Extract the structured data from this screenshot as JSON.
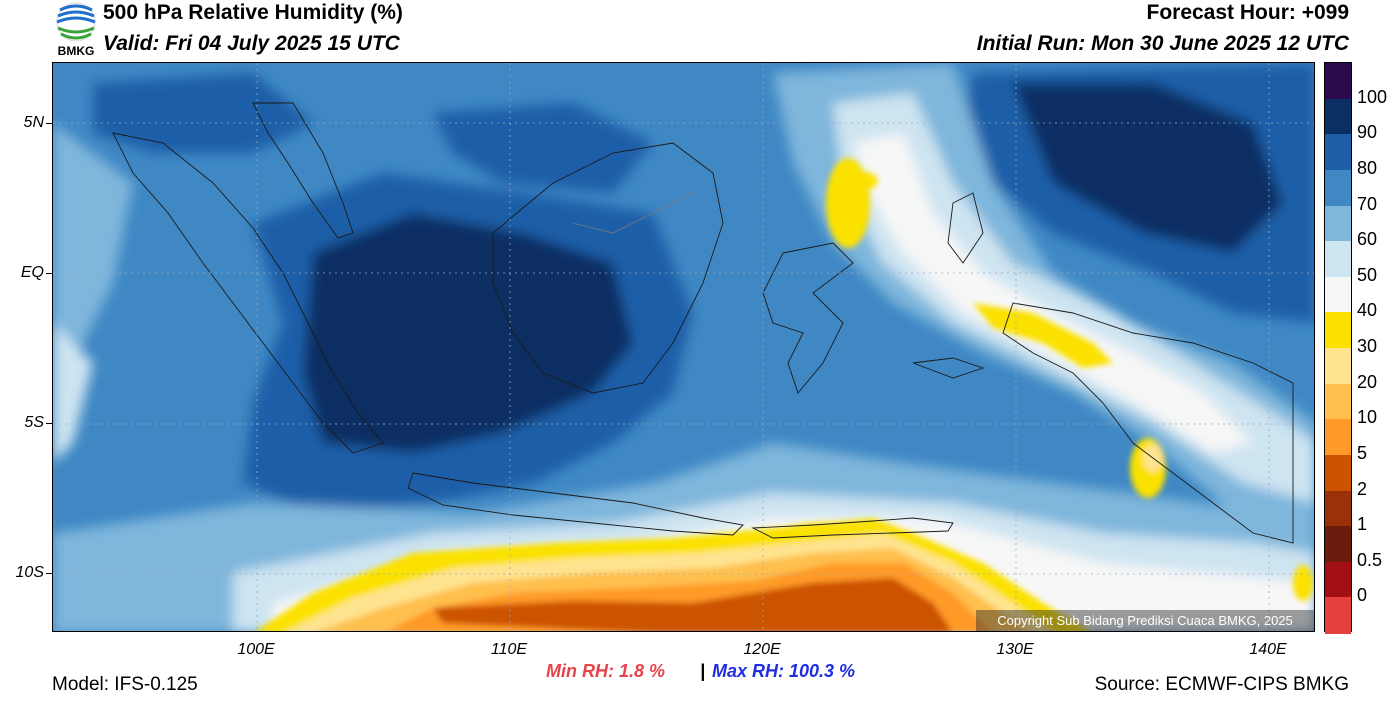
{
  "header": {
    "title": "500 hPa Relative Humidity (%)",
    "valid": "Valid: Fri 04 July 2025 15 UTC",
    "forecast_hour": "Forecast Hour: +099",
    "initial_run": "Initial Run: Mon 30 June 2025 12 UTC"
  },
  "logo": {
    "text": "BMKG",
    "icon": "bmkg-logo-icon"
  },
  "map": {
    "y_ticks": [
      "5N",
      "EQ",
      "5S",
      "10S"
    ],
    "x_ticks": [
      "100E",
      "110E",
      "120E",
      "130E",
      "140E"
    ],
    "copyright": "Copyright Sub Bidang Prediksi Cuaca BMKG, 2025"
  },
  "colorbar": {
    "labels": [
      "100",
      "90",
      "80",
      "70",
      "60",
      "50",
      "40",
      "30",
      "20",
      "10",
      "5",
      "2",
      "1",
      "0.5",
      "0"
    ],
    "colors": [
      "#2d0a4e",
      "#0b2f63",
      "#1f5ea8",
      "#3f88c4",
      "#7eb6dc",
      "#cde4f1",
      "#f7f7f7",
      "#fbe100",
      "#ffe38f",
      "#ffc04d",
      "#ff9a28",
      "#cc5200",
      "#9b3108",
      "#6b1c0d",
      "#a40f14",
      "#e6403e"
    ]
  },
  "stats": {
    "min_rh": "Min RH:   1.8 %",
    "separator": "|",
    "max_rh": "Max RH: 100.3 %"
  },
  "footer": {
    "model": "Model: IFS-0.125",
    "source": "Source: ECMWF-CIPS BMKG"
  }
}
